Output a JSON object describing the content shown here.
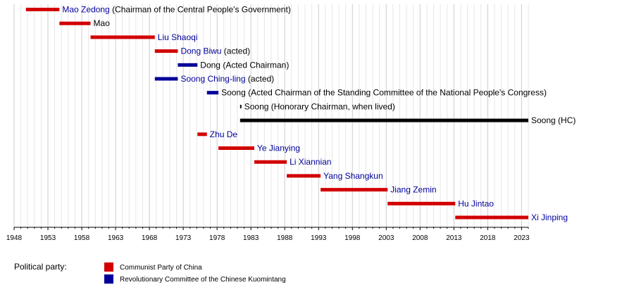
{
  "colors": {
    "communist_party": "#d20000",
    "revolutionary_committee": "#000099",
    "none": "#000000",
    "link_text": "#000099",
    "plain_text": "#000000",
    "grid_minor": "#e6e6e6",
    "grid_major": "#cccccc"
  },
  "chart_data": {
    "type": "timeline",
    "x_range": [
      1948,
      2024
    ],
    "grid": true,
    "x_ticks": [
      "1948",
      "1953",
      "1958",
      "1963",
      "1968",
      "1973",
      "1978",
      "1983",
      "1988",
      "1993",
      "1998",
      "2003",
      "2008",
      "2013",
      "2018",
      "2023"
    ],
    "rows": [
      {
        "name": "Mao Zedong",
        "note": " (Chairman of the Central People's Government)",
        "start": 1949.75,
        "end": 1954.7,
        "party": "communist_party",
        "link": true
      },
      {
        "name": "Mao",
        "note": "",
        "start": 1954.7,
        "end": 1959.3,
        "party": "communist_party",
        "link": false
      },
      {
        "name": "Liu Shaoqi",
        "note": "",
        "start": 1959.3,
        "end": 1968.8,
        "party": "communist_party",
        "link": true
      },
      {
        "name": "Dong Biwu",
        "note": " (acted)",
        "start": 1968.8,
        "end": 1972.2,
        "party": "communist_party",
        "link": true
      },
      {
        "name": "Dong (Acted Chairman)",
        "note": "",
        "start": 1972.2,
        "end": 1975.1,
        "party": "revolutionary_committee",
        "link": false
      },
      {
        "name": "Soong Ching-ling",
        "note": " (acted)",
        "start": 1968.8,
        "end": 1972.2,
        "party": "revolutionary_committee",
        "link": true
      },
      {
        "name": "Soong (Acted Chairman of the Standing Committee of the National People's Congress)",
        "note": "",
        "start": 1976.5,
        "end": 1978.2,
        "party": "revolutionary_committee",
        "link": false
      },
      {
        "name": "Soong (Honorary Chairman, when lived)",
        "note": "",
        "start": 1981.4,
        "end": 1981.6,
        "party": "none",
        "link": false
      },
      {
        "name": "Soong (HC)",
        "note": "",
        "start": 1981.4,
        "end": 2024,
        "party": "none",
        "link": false
      },
      {
        "name": "Zhu De",
        "note": "",
        "start": 1975.1,
        "end": 1976.5,
        "party": "communist_party",
        "link": true
      },
      {
        "name": "Ye Jianying",
        "note": "",
        "start": 1978.2,
        "end": 1983.5,
        "party": "communist_party",
        "link": true
      },
      {
        "name": "Li Xiannian",
        "note": "",
        "start": 1983.5,
        "end": 1988.3,
        "party": "communist_party",
        "link": true
      },
      {
        "name": "Yang Shangkun",
        "note": "",
        "start": 1988.3,
        "end": 1993.3,
        "party": "communist_party",
        "link": true
      },
      {
        "name": "Jiang Zemin",
        "note": "",
        "start": 1993.3,
        "end": 2003.2,
        "party": "communist_party",
        "link": true
      },
      {
        "name": "Hu Jintao",
        "note": "",
        "start": 2003.2,
        "end": 2013.2,
        "party": "communist_party",
        "link": true
      },
      {
        "name": "Xi Jinping",
        "note": "",
        "start": 2013.2,
        "end": 2024,
        "party": "communist_party",
        "link": true
      }
    ]
  },
  "legend": {
    "title": "Political party:",
    "items": [
      {
        "label": "Communist Party of China",
        "party": "communist_party"
      },
      {
        "label": "Revolutionary Committee of the Chinese Kuomintang",
        "party": "revolutionary_committee"
      }
    ]
  }
}
